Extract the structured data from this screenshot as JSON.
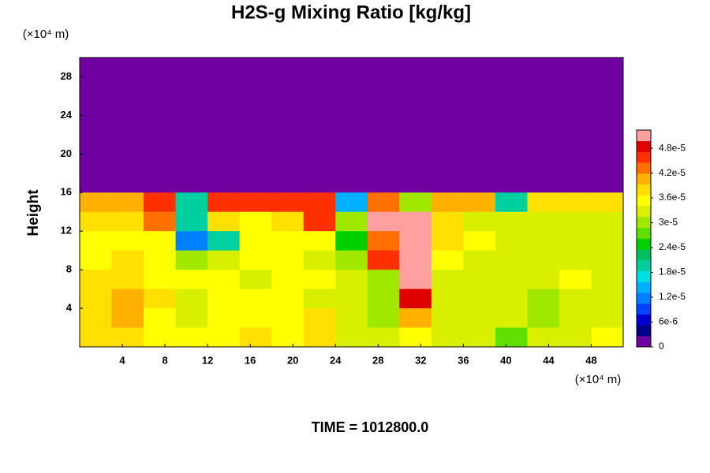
{
  "chart_data": {
    "type": "heatmap",
    "title": "H2S-g Mixing Ratio [kg/kg]",
    "ylabel": "Height",
    "y_unit_label": "(×10⁴ m)",
    "x_unit_label": "(×10⁴ m)",
    "footer": "TIME = 1012800.0",
    "x": [
      1.5,
      4.5,
      7.5,
      10.5,
      13.5,
      16.5,
      19.5,
      22.5,
      25.5,
      28.5,
      31.5,
      34.5,
      37.5,
      40.5,
      43.5,
      46.5,
      49.5
    ],
    "y": [
      29,
      27,
      25,
      23,
      21,
      19,
      17,
      15,
      13,
      11,
      9,
      7,
      5,
      3,
      1
    ],
    "z": [
      [
        0,
        0,
        0,
        0,
        0,
        0,
        0,
        0,
        0,
        0,
        0,
        0,
        0,
        0,
        0,
        0,
        0
      ],
      [
        0,
        0,
        0,
        0,
        0,
        0,
        0,
        0,
        0,
        0,
        0,
        0,
        0,
        0,
        0,
        0,
        0
      ],
      [
        0,
        0,
        0,
        0,
        0,
        0,
        0,
        0,
        0,
        0,
        0,
        0,
        0,
        0,
        0,
        0,
        0
      ],
      [
        0,
        0,
        0,
        0,
        0,
        0,
        0,
        0,
        0,
        0,
        0,
        0,
        0,
        0,
        0,
        0,
        0
      ],
      [
        0,
        0,
        0,
        0,
        0,
        0,
        0,
        0,
        0,
        0,
        0,
        0,
        0,
        0,
        0,
        0,
        0
      ],
      [
        0,
        0,
        0,
        0,
        0,
        0,
        0,
        0,
        0,
        0,
        0,
        0,
        0,
        0,
        0,
        0,
        0
      ],
      [
        0,
        0,
        0,
        0,
        0,
        0,
        0,
        0,
        0,
        0,
        0,
        0,
        0,
        0,
        0,
        0,
        0
      ],
      [
        4e-05,
        4e-05,
        4.5e-05,
        2e-05,
        4.5e-05,
        4.5e-05,
        4.5e-05,
        4.5e-05,
        1.5e-05,
        4.2e-05,
        3e-05,
        4e-05,
        4e-05,
        2e-05,
        3.8e-05,
        3.8e-05,
        3.8e-05
      ],
      [
        3.8e-05,
        3.8e-05,
        4.2e-05,
        2e-05,
        3.8e-05,
        3.6e-05,
        3.8e-05,
        4.5e-05,
        3e-05,
        5e-05,
        5e-05,
        3.8e-05,
        3.4e-05,
        3.2e-05,
        3.4e-05,
        3.4e-05,
        3.4e-05
      ],
      [
        3.6e-05,
        3.6e-05,
        3.6e-05,
        1.2e-05,
        2e-05,
        3.6e-05,
        3.6e-05,
        3.6e-05,
        2.4e-05,
        4.2e-05,
        5e-05,
        3.8e-05,
        3.6e-05,
        3.4e-05,
        3.3e-05,
        3.3e-05,
        3.3e-05
      ],
      [
        3.6e-05,
        3.8e-05,
        3.6e-05,
        3e-05,
        3.4e-05,
        3.6e-05,
        3.6e-05,
        3.4e-05,
        3e-05,
        4.5e-05,
        5e-05,
        3.6e-05,
        3.4e-05,
        3.3e-05,
        3.3e-05,
        3.3e-05,
        3.3e-05
      ],
      [
        3.8e-05,
        3.8e-05,
        3.6e-05,
        3.6e-05,
        3.6e-05,
        3.4e-05,
        3.6e-05,
        3.6e-05,
        3.4e-05,
        3e-05,
        5e-05,
        3.4e-05,
        3.4e-05,
        3.3e-05,
        3.3e-05,
        3.5e-05,
        3.4e-05
      ],
      [
        3.8e-05,
        4e-05,
        3.8e-05,
        3.4e-05,
        3.6e-05,
        3.6e-05,
        3.6e-05,
        3.4e-05,
        3.3e-05,
        3e-05,
        4.8e-05,
        3.3e-05,
        3.4e-05,
        3.3e-05,
        3e-05,
        3.4e-05,
        3.4e-05
      ],
      [
        3.8e-05,
        4e-05,
        3.6e-05,
        3.4e-05,
        3.6e-05,
        3.6e-05,
        3.6e-05,
        3.8e-05,
        3.3e-05,
        3e-05,
        4e-05,
        3.4e-05,
        3.4e-05,
        3.3e-05,
        3e-05,
        3.4e-05,
        3.4e-05
      ],
      [
        3.8e-05,
        3.8e-05,
        3.6e-05,
        3.6e-05,
        3.6e-05,
        3.8e-05,
        3.6e-05,
        3.8e-05,
        3.4e-05,
        3.4e-05,
        3.6e-05,
        3.4e-05,
        3.3e-05,
        2.8e-05,
        3.3e-05,
        3.4e-05,
        3.6e-05
      ]
    ],
    "xlim": [
      0,
      51
    ],
    "ylim": [
      0,
      30
    ],
    "xticks": [
      4,
      8,
      12,
      16,
      20,
      24,
      28,
      32,
      36,
      40,
      44,
      48
    ],
    "yticks": [
      4,
      8,
      12,
      16,
      20,
      24,
      28
    ],
    "clim": [
      0,
      5.24e-05
    ],
    "cticks": [
      0,
      {
        "value": 6e-06,
        "label": "6e-6"
      },
      {
        "value": 1.2e-05,
        "label": "1.2e-5"
      },
      {
        "value": 1.8e-05,
        "label": "1.8e-5"
      },
      {
        "value": 2.4e-05,
        "label": "2.4e-5"
      },
      {
        "value": 3e-05,
        "label": "3e-5"
      },
      {
        "value": 3.6e-05,
        "label": "3.6e-5"
      },
      {
        "value": 4.2e-05,
        "label": "4.2e-5"
      },
      {
        "value": 4.8e-05,
        "label": "4.8e-5"
      }
    ],
    "colormap": [
      "#7000a0",
      "#00008c",
      "#0000d0",
      "#0040ff",
      "#0080ff",
      "#00b0ff",
      "#00e0e0",
      "#00d0a0",
      "#00c060",
      "#00d000",
      "#60e000",
      "#a0e800",
      "#d8f000",
      "#ffff00",
      "#ffe000",
      "#ffb000",
      "#ff7000",
      "#ff3000",
      "#e00000",
      "#ffa0a0"
    ]
  }
}
